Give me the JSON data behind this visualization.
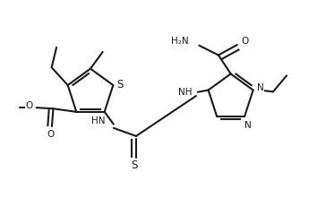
{
  "bg": "#ffffff",
  "lc": "#1a1a1a",
  "lw": 1.5,
  "fs": 7.5,
  "figsize": [
    3.64,
    2.21
  ],
  "dpi": 100,
  "xlim": [
    0,
    10
  ],
  "ylim": [
    0,
    6.1
  ],
  "tcx": 2.75,
  "tcy": 3.25,
  "tr": 0.74,
  "S_ang": 18,
  "C2_ang": 90,
  "C3_ang": 162,
  "C4_ang": 234,
  "C5_ang": 306,
  "pcx": 7.1,
  "pcy": 3.1,
  "pr": 0.73,
  "pC4_ang": 162,
  "pC3_ang": 90,
  "pN1_ang": 18,
  "pN2_ang": -54,
  "pC5_ang": -126
}
